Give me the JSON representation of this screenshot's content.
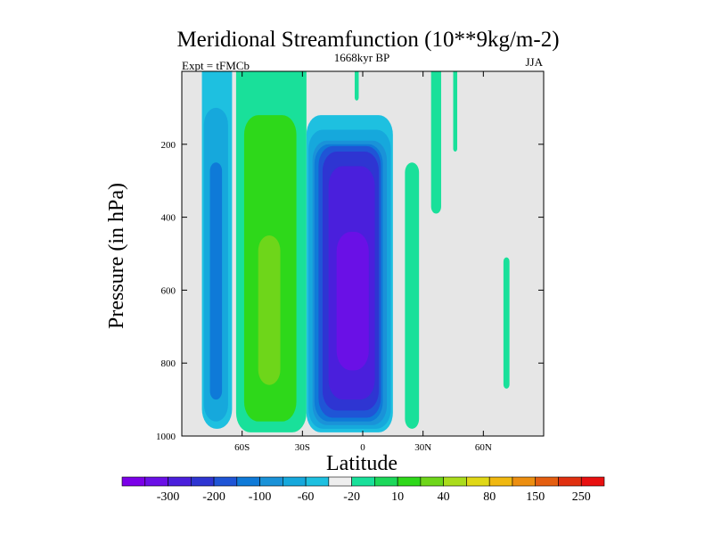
{
  "chart_data": {
    "type": "contour",
    "title": "Meridional Streamfunction (10**9kg/m-2)",
    "left_label": "Expt = tFMCb",
    "center_label": "1668kyr BP",
    "right_label": "JJA",
    "xlabel": "Latitude",
    "ylabel": "Pressure (in hPa)",
    "xlim": [
      -90,
      90
    ],
    "ylim": [
      1000,
      0
    ],
    "x_ticks": [
      {
        "value": -60,
        "label": "60S"
      },
      {
        "value": -30,
        "label": "30S"
      },
      {
        "value": 0,
        "label": "0"
      },
      {
        "value": 30,
        "label": "30N"
      },
      {
        "value": 60,
        "label": "60N"
      }
    ],
    "y_ticks": [
      {
        "value": 200,
        "label": "200"
      },
      {
        "value": 400,
        "label": "400"
      },
      {
        "value": 600,
        "label": "600"
      },
      {
        "value": 800,
        "label": "800"
      },
      {
        "value": 1000,
        "label": "1000"
      }
    ],
    "background_color": "#e6e6e6",
    "colorbar": {
      "colors": [
        "#7b00e8",
        "#6a10e6",
        "#4a1fdc",
        "#2e35d2",
        "#1f55d6",
        "#0f7ad8",
        "#1a92d8",
        "#16a8dc",
        "#1ec0e0",
        "#eeeeee",
        "#19e09a",
        "#1cd85a",
        "#2ed81a",
        "#6ed61a",
        "#aadc1c",
        "#e0d816",
        "#f0b810",
        "#ec8e10",
        "#e45e10",
        "#e03010",
        "#e81010"
      ],
      "labels": [
        {
          "after_bin": 1,
          "label": "-300"
        },
        {
          "after_bin": 3,
          "label": "-200"
        },
        {
          "after_bin": 5,
          "label": "-100"
        },
        {
          "after_bin": 7,
          "label": "-60"
        },
        {
          "after_bin": 9,
          "label": "-20"
        },
        {
          "after_bin": 11,
          "label": "10"
        },
        {
          "after_bin": 13,
          "label": "40"
        },
        {
          "after_bin": 15,
          "label": "80"
        },
        {
          "after_bin": 17,
          "label": "150"
        },
        {
          "after_bin": 19,
          "label": "250"
        }
      ]
    },
    "regions": [
      {
        "name": "southern-polar-cell",
        "color": "#1ec0e0",
        "lat": [
          -80,
          -65
        ],
        "p": [
          0,
          980
        ]
      },
      {
        "name": "southern-polar-cell-core",
        "color": "#16a8dc",
        "lat": [
          -79,
          -67
        ],
        "p": [
          100,
          960
        ]
      },
      {
        "name": "southern-polar-cell-center",
        "color": "#0f7ad8",
        "lat": [
          -76,
          -70
        ],
        "p": [
          250,
          900
        ]
      },
      {
        "name": "southern-ferrel-cell",
        "color": "#19e09a",
        "lat": [
          -63,
          -28
        ],
        "p": [
          0,
          990
        ]
      },
      {
        "name": "southern-ferrel-cell-core",
        "color": "#2ed81a",
        "lat": [
          -59,
          -33
        ],
        "p": [
          120,
          960
        ]
      },
      {
        "name": "southern-ferrel-cell-center",
        "color": "#6ed61a",
        "lat": [
          -52,
          -41
        ],
        "p": [
          450,
          860
        ]
      },
      {
        "name": "hadley-cell-outer",
        "color": "#1ec0e0",
        "lat": [
          -28,
          15
        ],
        "p": [
          120,
          990
        ]
      },
      {
        "name": "hadley-cell-band-2",
        "color": "#16a8dc",
        "lat": [
          -27,
          14
        ],
        "p": [
          160,
          980
        ]
      },
      {
        "name": "hadley-cell-band-3",
        "color": "#1a92d8",
        "lat": [
          -25,
          12
        ],
        "p": [
          190,
          970
        ]
      },
      {
        "name": "hadley-cell-band-4",
        "color": "#0f7ad8",
        "lat": [
          -24,
          10
        ],
        "p": [
          200,
          960
        ]
      },
      {
        "name": "hadley-cell-band-5",
        "color": "#1f55d6",
        "lat": [
          -22,
          9
        ],
        "p": [
          205,
          950
        ]
      },
      {
        "name": "hadley-cell-band-6",
        "color": "#2e35d2",
        "lat": [
          -20,
          8
        ],
        "p": [
          220,
          930
        ]
      },
      {
        "name": "hadley-cell-core",
        "color": "#4a1fdc",
        "lat": [
          -17,
          6
        ],
        "p": [
          260,
          900
        ]
      },
      {
        "name": "hadley-cell-center",
        "color": "#6a10e6",
        "lat": [
          -13,
          3
        ],
        "p": [
          440,
          820
        ]
      },
      {
        "name": "northern-subtropical-cell",
        "color": "#19e09a",
        "lat": [
          21,
          28
        ],
        "p": [
          250,
          980
        ]
      },
      {
        "name": "northern-thin-band-1",
        "color": "#19e09a",
        "lat": [
          -4,
          -2
        ],
        "p": [
          0,
          80
        ]
      },
      {
        "name": "northern-thin-band-2",
        "color": "#19e09a",
        "lat": [
          34,
          39
        ],
        "p": [
          0,
          390
        ]
      },
      {
        "name": "northern-thin-band-3",
        "color": "#19e09a",
        "lat": [
          45,
          47
        ],
        "p": [
          0,
          220
        ]
      },
      {
        "name": "northern-polar-patch",
        "color": "#19e09a",
        "lat": [
          70,
          73
        ],
        "p": [
          510,
          870
        ]
      }
    ]
  }
}
